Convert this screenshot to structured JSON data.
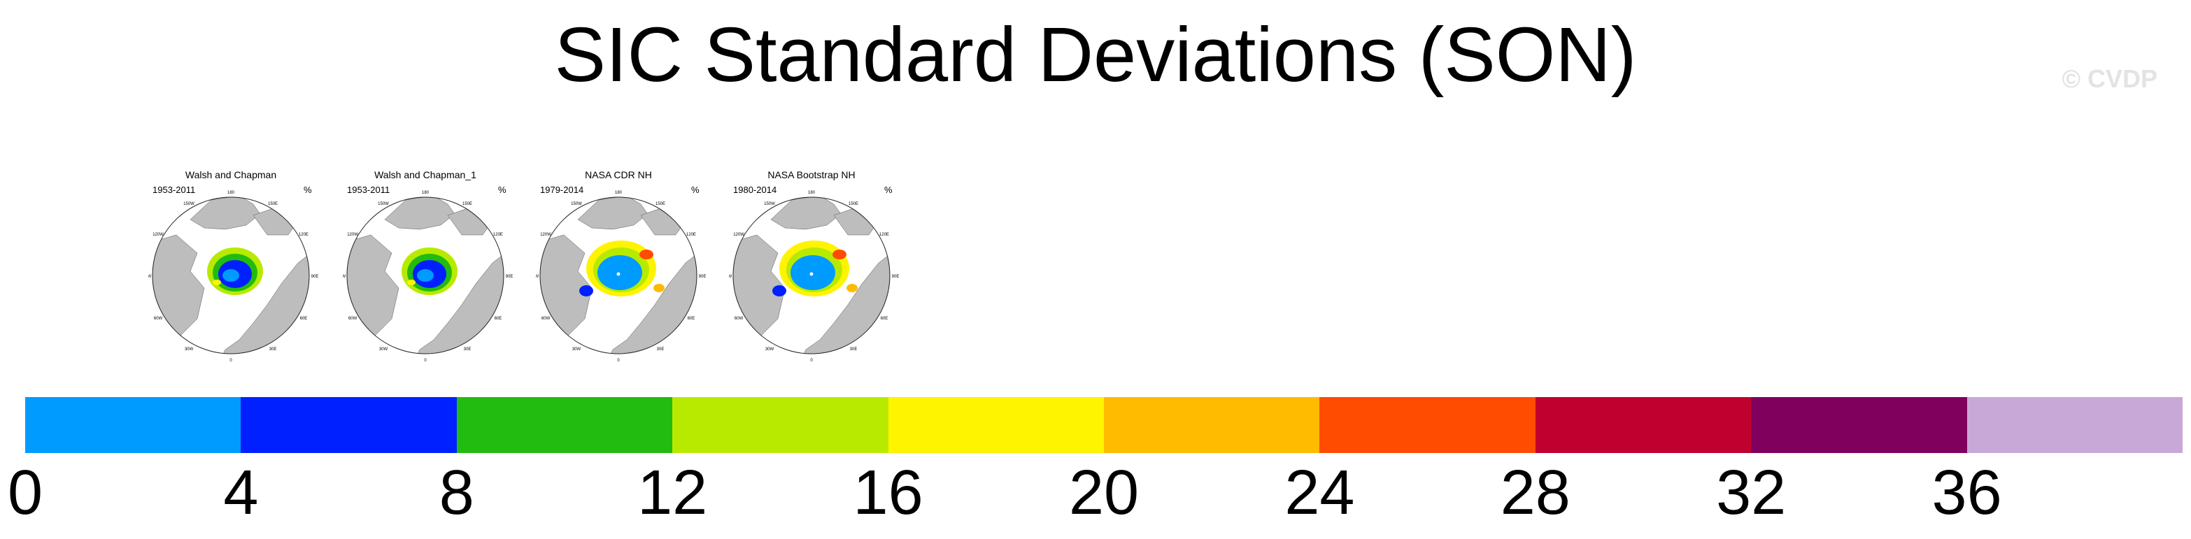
{
  "title": "SIC Standard Deviations (SON)",
  "watermark": "© CVDP",
  "panels": [
    {
      "title": "Walsh and Chapman",
      "years": "1953-2011",
      "unit": "%",
      "variant": "walsh"
    },
    {
      "title": "Walsh and Chapman_1",
      "years": "1953-2011",
      "unit": "%",
      "variant": "walsh"
    },
    {
      "title": "NASA CDR NH",
      "years": "1979-2014",
      "unit": "%",
      "variant": "nasa"
    },
    {
      "title": "NASA Bootstrap NH",
      "years": "1980-2014",
      "unit": "%",
      "variant": "nasa"
    }
  ],
  "map_lon_labels": [
    "180",
    "150E",
    "120E",
    "90E",
    "60E",
    "30E",
    "0",
    "30W",
    "60W",
    "90W",
    "120W",
    "150W"
  ],
  "colorbar": {
    "colors": [
      "#009bff",
      "#0020ff",
      "#22bb10",
      "#b8ea00",
      "#fff400",
      "#ffbb00",
      "#ff4c00",
      "#c0002f",
      "#80005e",
      "#c8a8d6"
    ],
    "tick_labels": [
      "0",
      "4",
      "8",
      "12",
      "16",
      "20",
      "24",
      "28",
      "32",
      "36"
    ]
  }
}
